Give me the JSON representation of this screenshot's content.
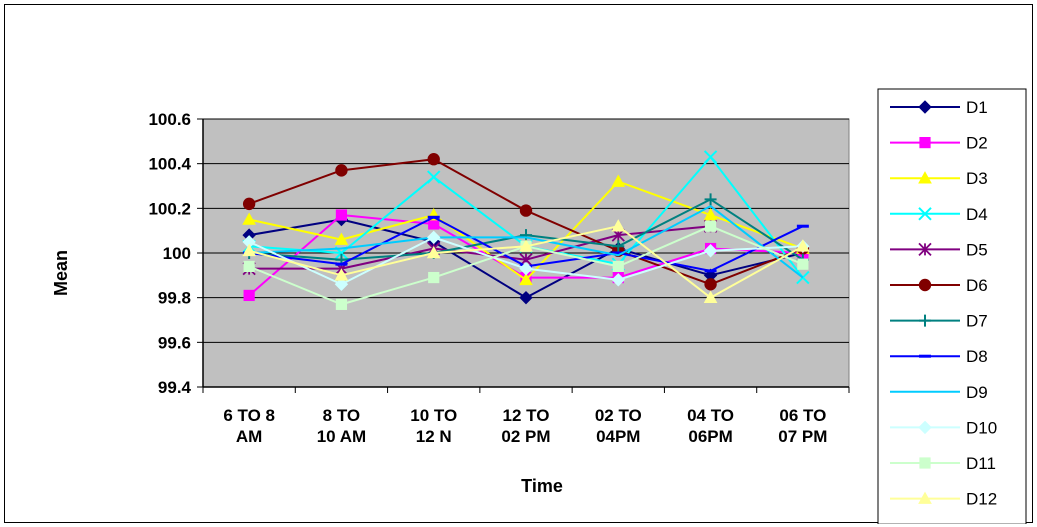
{
  "chart_data": {
    "type": "line",
    "title": "",
    "xlabel": "Time",
    "ylabel": "Mean",
    "categories": [
      [
        "6 TO 8",
        "AM"
      ],
      [
        "8 TO",
        "10 AM"
      ],
      [
        "10 TO",
        "12 N"
      ],
      [
        "12 TO",
        "02 PM"
      ],
      [
        "02 TO",
        "04PM"
      ],
      [
        "04 TO",
        "06PM"
      ],
      [
        "06 TO",
        "07 PM"
      ]
    ],
    "ylim": [
      99.4,
      100.6
    ],
    "yticks": [
      "99.4",
      "99.6",
      "99.8",
      "100",
      "100.2",
      "100.4",
      "100.6"
    ],
    "grid": true,
    "plot_background": "#c0c0c0",
    "legend_position": "right",
    "series": [
      {
        "name": "D1",
        "color": "#000080",
        "marker": "diamond",
        "values": [
          100.08,
          100.15,
          100.05,
          99.8,
          100.02,
          99.9,
          100.0
        ]
      },
      {
        "name": "D2",
        "color": "#ff00ff",
        "marker": "square",
        "values": [
          99.81,
          100.17,
          100.13,
          99.89,
          99.89,
          100.02,
          100.0
        ]
      },
      {
        "name": "D3",
        "color": "#ffff00",
        "marker": "triangle",
        "values": [
          100.15,
          100.06,
          100.17,
          99.88,
          100.32,
          100.17,
          100.02
        ]
      },
      {
        "name": "D4",
        "color": "#00ffff",
        "marker": "x",
        "values": [
          100.03,
          100.0,
          100.34,
          100.03,
          99.95,
          100.43,
          99.89
        ]
      },
      {
        "name": "D5",
        "color": "#800080",
        "marker": "star",
        "values": [
          99.93,
          99.93,
          100.02,
          99.97,
          100.08,
          100.12,
          null
        ]
      },
      {
        "name": "D6",
        "color": "#800000",
        "marker": "circle",
        "values": [
          100.22,
          100.37,
          100.42,
          100.19,
          100.01,
          99.86,
          100.02
        ]
      },
      {
        "name": "D7",
        "color": "#008080",
        "marker": "plus",
        "values": [
          100.0,
          99.97,
          100.0,
          100.08,
          100.03,
          100.24,
          99.97
        ]
      },
      {
        "name": "D8",
        "color": "#0000ff",
        "marker": "dash",
        "values": [
          100.0,
          99.95,
          100.16,
          99.94,
          100.0,
          99.92,
          100.12
        ]
      },
      {
        "name": "D9",
        "color": "#00ccff",
        "marker": "none",
        "values": [
          100.0,
          100.02,
          100.07,
          100.07,
          99.99,
          100.21,
          99.89
        ]
      },
      {
        "name": "D10",
        "color": "#ccffff",
        "marker": "diamond",
        "values": [
          100.05,
          99.86,
          100.07,
          99.93,
          99.88,
          100.01,
          100.03
        ]
      },
      {
        "name": "D11",
        "color": "#ccffcc",
        "marker": "square",
        "values": [
          99.94,
          99.77,
          99.89,
          100.03,
          99.94,
          100.12,
          99.95
        ]
      },
      {
        "name": "D12",
        "color": "#ffff99",
        "marker": "triangle",
        "values": [
          100.01,
          99.9,
          100.0,
          100.03,
          100.12,
          99.8,
          100.03
        ]
      }
    ]
  }
}
